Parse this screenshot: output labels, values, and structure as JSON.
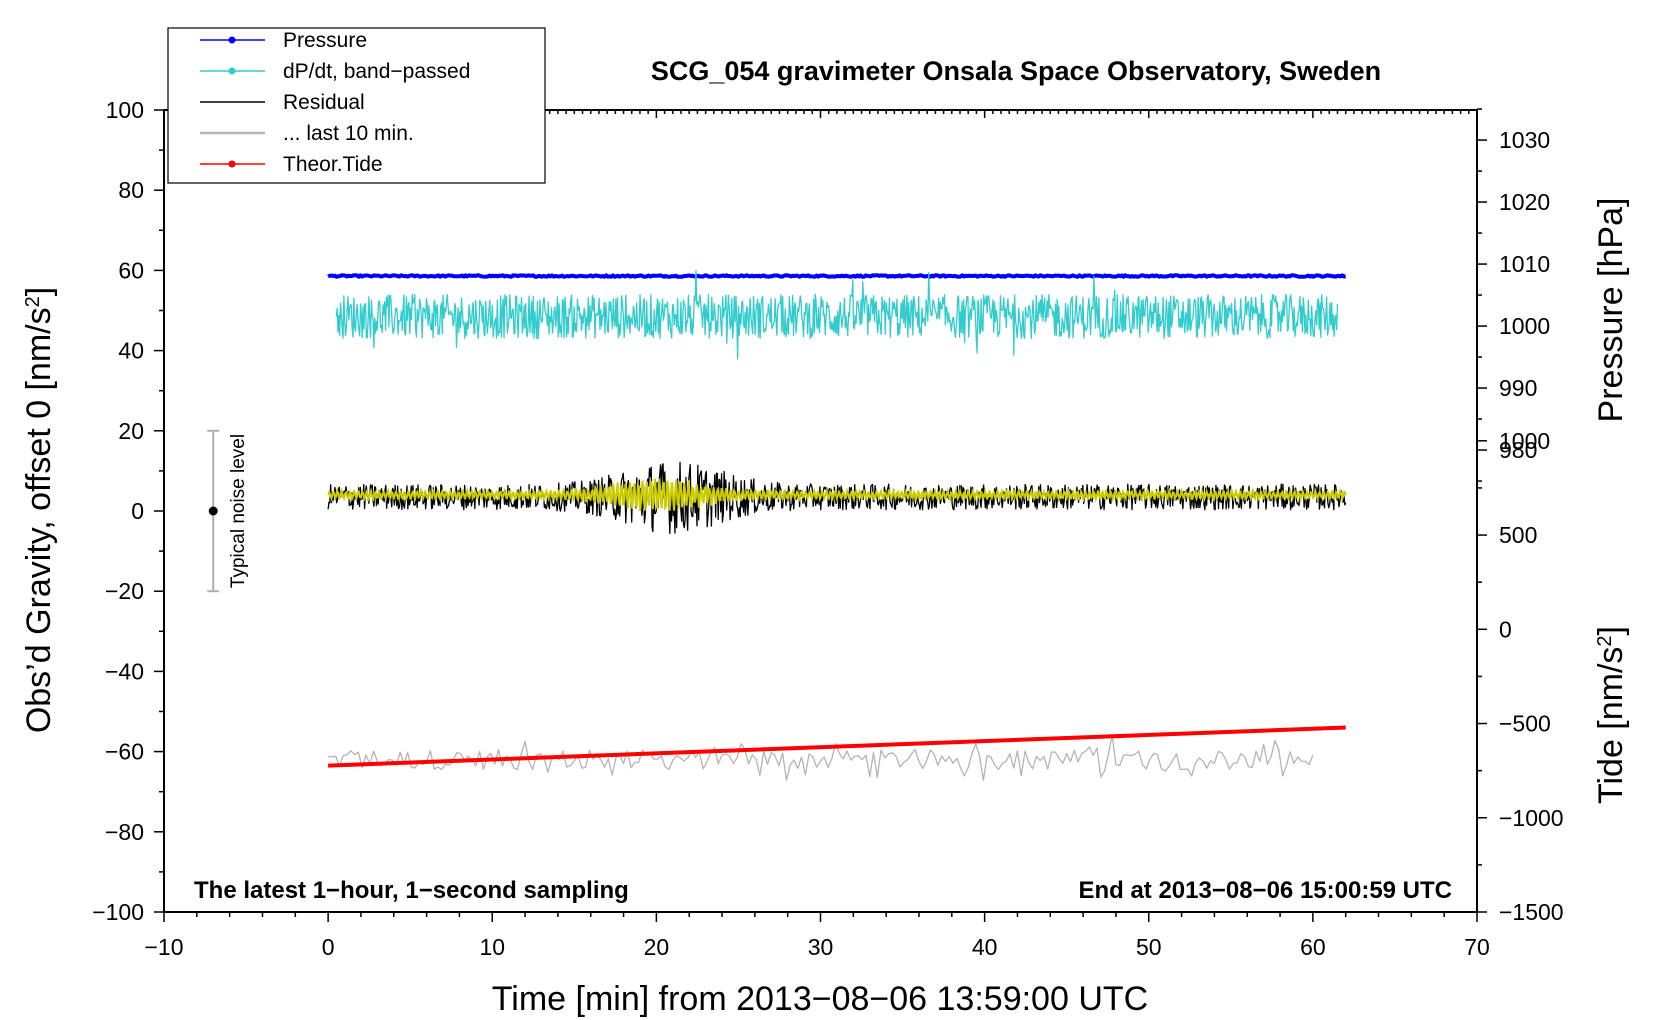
{
  "chart_data": {
    "type": "line",
    "title": "SCG_054 gravimeter Onsala Space Observatory, Sweden",
    "xlabel": "Time [min] from 2013−08−06 13:59:00 UTC",
    "ylabel_left": "Obs’d Gravity, offset 0 [nm/s2]",
    "ylabel_left_main": "Obs’d Gravity, offset 0 [nm/s",
    "ylabel_left_sup": "2",
    "ylabel_left_end": "]",
    "ylabel_right_pressure": "Pressure [hPa]",
    "ylabel_right_tide": "Tide [nm/s2]",
    "ylabel_right_tide_main": "Tide [nm/s",
    "ylabel_right_tide_sup": "2",
    "ylabel_right_tide_end": "]",
    "xlim": [
      -10,
      70
    ],
    "ylim": [
      -100,
      100
    ],
    "x_ticks": [
      -10,
      0,
      10,
      20,
      30,
      40,
      50,
      60,
      70
    ],
    "x_tick_labels": [
      "−10",
      "0",
      "10",
      "20",
      "30",
      "40",
      "50",
      "60",
      "70"
    ],
    "y_ticks": [
      100,
      80,
      60,
      40,
      20,
      0,
      -20,
      -40,
      -60,
      -80,
      -100
    ],
    "y_tick_labels": [
      "100",
      "80",
      "60",
      "40",
      "20",
      "0",
      "−20",
      "−40",
      "−60",
      "−80",
      "−100"
    ],
    "pressure_axis": {
      "ticks": [
        1030,
        1020,
        1010,
        1000,
        990,
        980
      ],
      "tick_labels": [
        "1030",
        "1020",
        "1010",
        "1000",
        "990",
        "980"
      ],
      "ref": {
        "hpa_a": 1030,
        "grav_a": 92.5,
        "hpa_b": 980,
        "grav_b": 15.2
      }
    },
    "tide_axis": {
      "ticks": [
        1000,
        500,
        0,
        -500,
        -1000,
        -1500
      ],
      "tick_labels": [
        "1000",
        "500",
        "0",
        "−500",
        "−1000",
        "−1500"
      ],
      "ref": {
        "tide_a": 1000,
        "grav_a": 17.5,
        "tide_b": -1500,
        "grav_b": -100
      }
    },
    "series": [
      {
        "name": "Pressure",
        "color": "#0000ff",
        "kind": "flat",
        "x_start": 0,
        "x_end": 62,
        "level": 58.6,
        "amp": 0.4,
        "marker": true
      },
      {
        "name": "dP/dt, band−passed",
        "color": "#33cccc",
        "kind": "noise",
        "x_start": 0.5,
        "x_end": 61.5,
        "level": 48.5,
        "amp": 5.5,
        "spike_amp": 12,
        "marker": true
      },
      {
        "name": "Residual",
        "color": "#000000",
        "kind": "noise",
        "x_start": 0,
        "x_end": 62,
        "level": 3.5,
        "amp": 3.2,
        "burst_center": 21,
        "burst_width": 4,
        "burst_amp": 6,
        "marker": false
      },
      {
        "name": "... last 10 min.",
        "color": "#b4b4b4",
        "kind": "slow",
        "x_start": 0,
        "x_end": 60,
        "level": -62,
        "amp": 2.5,
        "marker": false
      },
      {
        "name": "Theor.Tide",
        "color": "#ff0000",
        "kind": "ramp",
        "x_start": 0,
        "x_end": 62,
        "y_start": -63.5,
        "y_end": -54,
        "marker": true
      }
    ],
    "smooth_residual": {
      "color": "#cccc00",
      "level": 4,
      "amp": 1.2,
      "burst_center": 20,
      "burst_width": 3.5,
      "burst_amp": 3.8
    },
    "noise_bar": {
      "label": "Typical noise level",
      "x": -7,
      "center": 0,
      "half_range": 20
    },
    "annotations": {
      "bottom_left": "The latest 1−hour, 1−second sampling",
      "bottom_right": "End at 2013−08−06 15:00:59 UTC"
    },
    "legend_position": "top-left"
  }
}
